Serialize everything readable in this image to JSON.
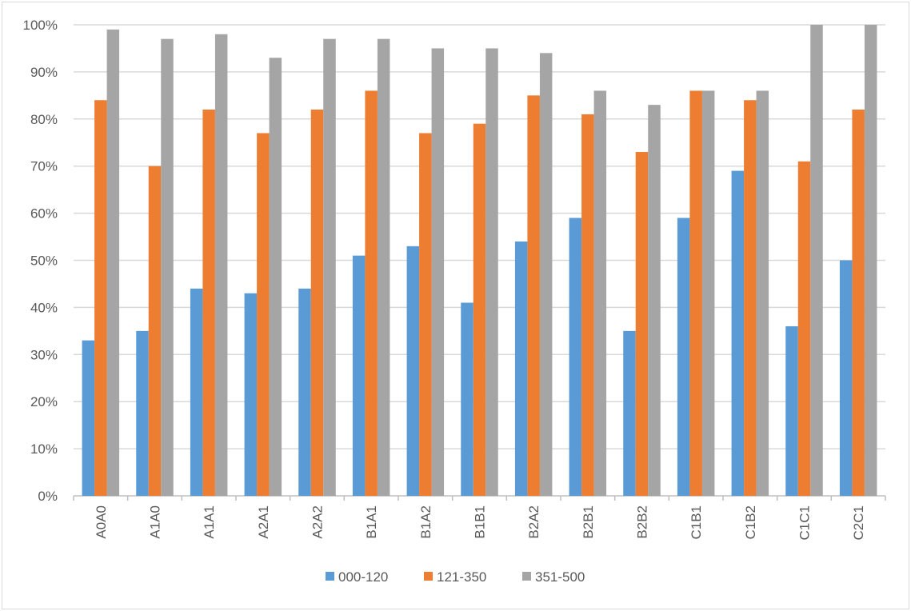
{
  "chart_data": {
    "type": "bar",
    "title": "",
    "xlabel": "",
    "ylabel": "",
    "ylim": [
      0,
      100
    ],
    "ytick_labels": [
      "0%",
      "10%",
      "20%",
      "30%",
      "40%",
      "50%",
      "60%",
      "70%",
      "80%",
      "90%",
      "100%"
    ],
    "grid": true,
    "legend_position": "bottom",
    "categories": [
      "A0A0",
      "A1A0",
      "A1A1",
      "A2A1",
      "A2A2",
      "B1A1",
      "B1A2",
      "B1B1",
      "B2A2",
      "B2B1",
      "B2B2",
      "C1B1",
      "C1B2",
      "C1C1",
      "C2C1"
    ],
    "series": [
      {
        "name": "000-120",
        "color": "#5B9BD5",
        "values": [
          33,
          35,
          44,
          43,
          44,
          51,
          53,
          41,
          54,
          59,
          35,
          59,
          69,
          36,
          50
        ]
      },
      {
        "name": "121-350",
        "color": "#ED7D31",
        "values": [
          84,
          70,
          82,
          77,
          82,
          86,
          77,
          79,
          85,
          81,
          73,
          86,
          84,
          71,
          82
        ]
      },
      {
        "name": "351-500",
        "color": "#A5A5A5",
        "values": [
          99,
          97,
          98,
          93,
          97,
          97,
          95,
          95,
          94,
          86,
          83,
          86,
          86,
          100,
          100
        ]
      }
    ]
  }
}
